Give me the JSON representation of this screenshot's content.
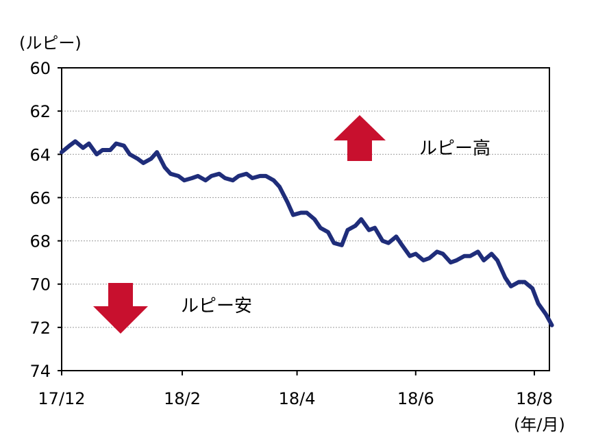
{
  "chart_data": {
    "type": "line",
    "ylabel": "(ルピー)",
    "xlabel": "(年/月)",
    "ylim": [
      60,
      74
    ],
    "y_inverted": true,
    "y_ticks": [
      "60",
      "62",
      "64",
      "66",
      "68",
      "70",
      "72",
      "74"
    ],
    "x_ticks": [
      "17/12",
      "18/2",
      "18/4",
      "18/6",
      "18/8"
    ],
    "grid": "horizontal dotted",
    "line_color": "#1f2d7a",
    "annotations": {
      "up_label": "ルピー高",
      "down_label": "ルピー安",
      "arrow_color": "#c8102e"
    },
    "x": [
      "17/12/01",
      "17/12/05",
      "17/12/08",
      "17/12/12",
      "17/12/15",
      "17/12/19",
      "17/12/22",
      "17/12/26",
      "17/12/29",
      "18/01/02",
      "18/01/05",
      "18/01/09",
      "18/01/12",
      "18/01/16",
      "18/01/19",
      "18/01/23",
      "18/01/26",
      "18/01/30",
      "18/02/02",
      "18/02/06",
      "18/02/09",
      "18/02/13",
      "18/02/16",
      "18/02/20",
      "18/02/23",
      "18/02/27",
      "18/03/02",
      "18/03/06",
      "18/03/09",
      "18/03/13",
      "18/03/16",
      "18/03/20",
      "18/03/23",
      "18/03/27",
      "18/03/30",
      "18/04/03",
      "18/04/06",
      "18/04/10",
      "18/04/13",
      "18/04/17",
      "18/04/20",
      "18/04/24",
      "18/04/27",
      "18/05/01",
      "18/05/04",
      "18/05/08",
      "18/05/11",
      "18/05/15",
      "18/05/18",
      "18/05/22",
      "18/05/25",
      "18/05/29",
      "18/06/01",
      "18/06/05",
      "18/06/08",
      "18/06/12",
      "18/06/15",
      "18/06/19",
      "18/06/22",
      "18/06/26",
      "18/06/29",
      "18/07/03",
      "18/07/06",
      "18/07/10",
      "18/07/13",
      "18/07/17",
      "18/07/20",
      "18/07/24",
      "18/07/27",
      "18/07/31",
      "18/08/03",
      "18/08/07",
      "18/08/10"
    ],
    "series": [
      {
        "values": [
          63.9,
          63.6,
          63.4,
          63.7,
          63.5,
          64.0,
          63.8,
          63.8,
          63.5,
          63.6,
          64.0,
          64.2,
          64.4,
          64.2,
          63.9,
          64.6,
          64.9,
          65.0,
          65.2,
          65.1,
          65.0,
          65.2,
          65.0,
          64.9,
          65.1,
          65.2,
          65.0,
          64.9,
          65.1,
          65.0,
          65.0,
          65.2,
          65.5,
          66.2,
          66.8,
          66.7,
          66.7,
          67.0,
          67.4,
          67.6,
          68.1,
          68.2,
          67.5,
          67.3,
          67.0,
          67.5,
          67.4,
          68.0,
          68.1,
          67.8,
          68.2,
          68.7,
          68.6,
          68.9,
          68.8,
          68.5,
          68.6,
          69.0,
          68.9,
          68.7,
          68.7,
          68.5,
          68.9,
          68.6,
          68.9,
          69.7,
          70.1,
          69.9,
          69.9,
          70.2,
          70.9,
          71.4,
          71.9
        ]
      }
    ]
  }
}
